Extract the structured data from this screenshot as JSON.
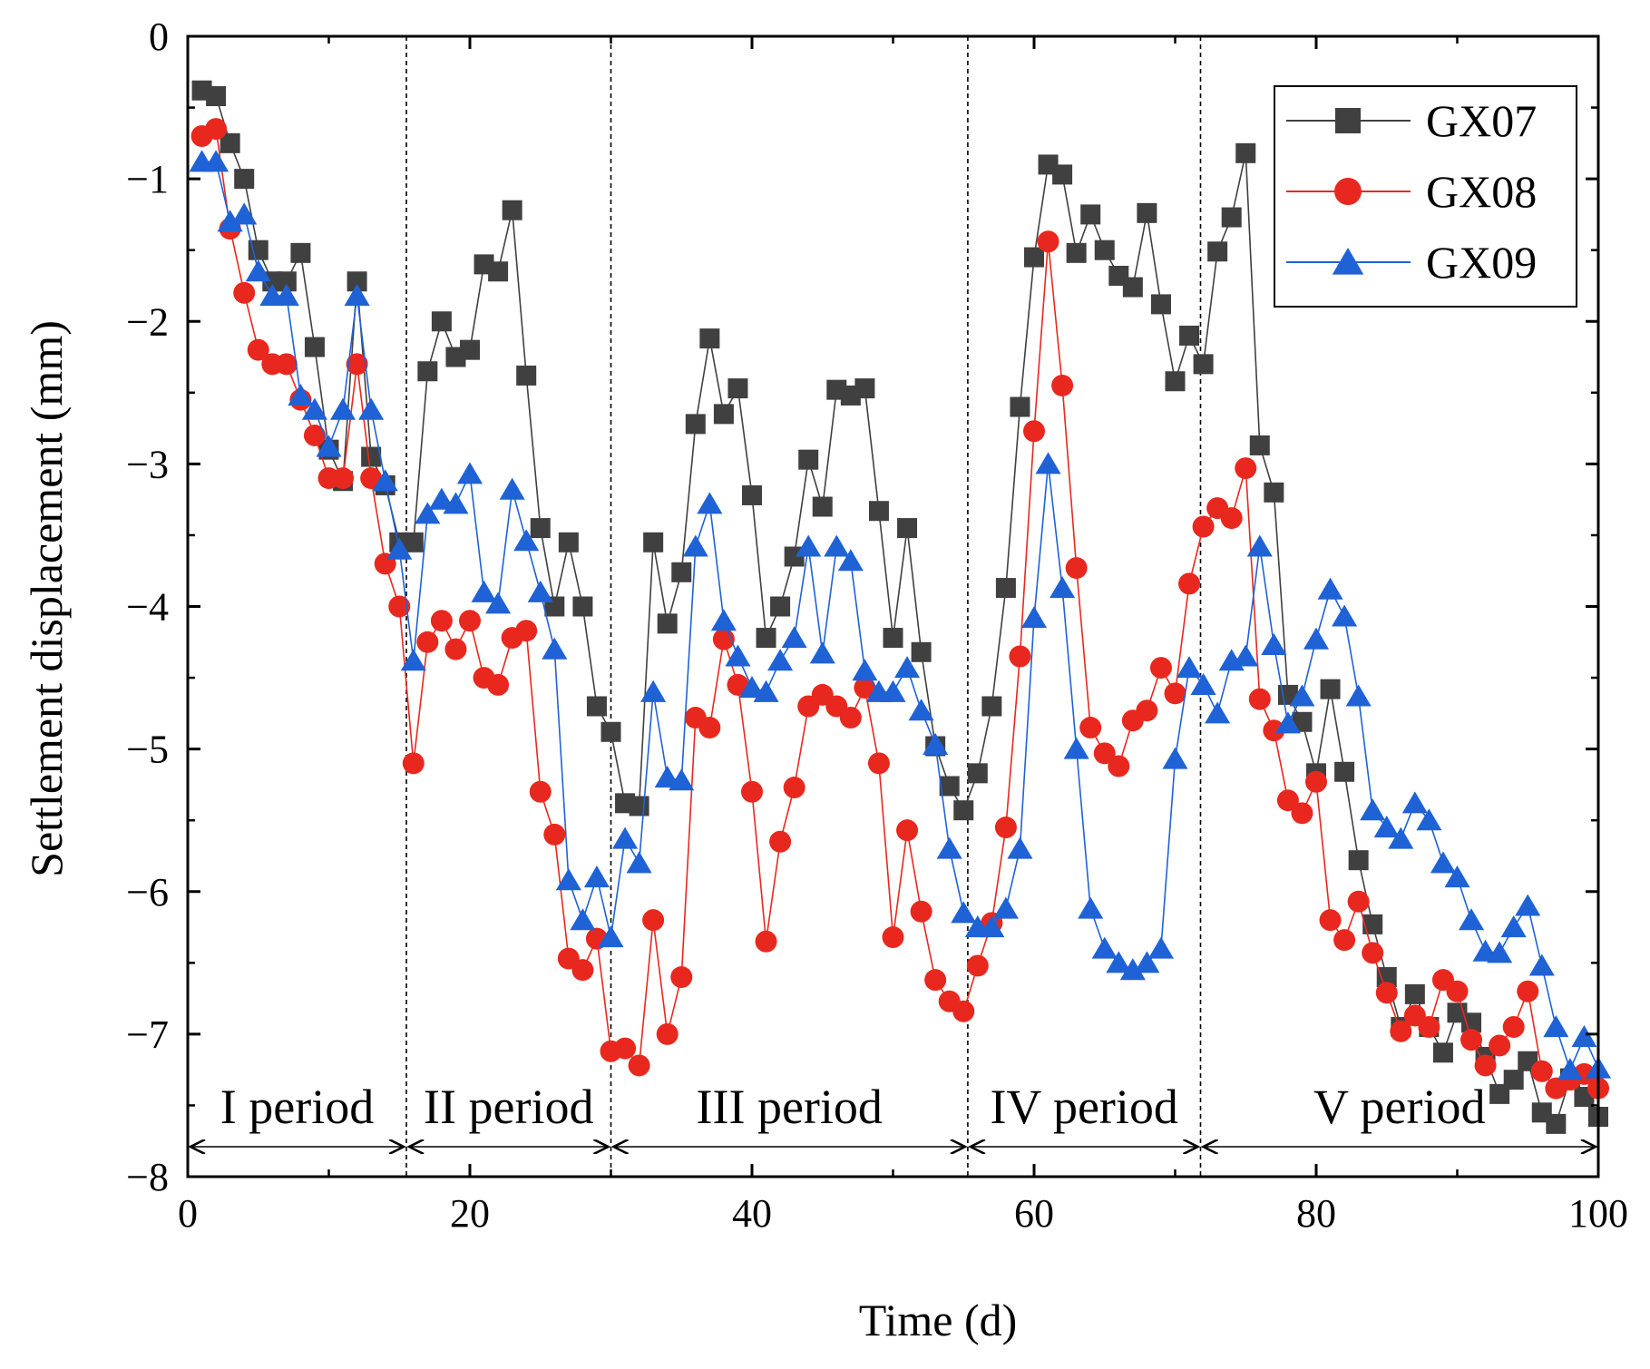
{
  "chart_data": {
    "type": "line",
    "title": "",
    "xlabel": "Time (d)",
    "ylabel": "Settlement displacement (mm)",
    "xlim": [
      0,
      100
    ],
    "ylim": [
      -8,
      0
    ],
    "xticks": [
      0,
      20,
      40,
      60,
      80,
      100
    ],
    "yticks": [
      0,
      -1,
      -2,
      -3,
      -4,
      -5,
      -6,
      -7,
      -8
    ],
    "grid": false,
    "legend_position": "top-right",
    "period_boundaries": [
      15.5,
      30,
      55.3,
      71.8
    ],
    "periods": [
      {
        "label": "I period",
        "start": 0,
        "end": 15.5
      },
      {
        "label": "II period",
        "start": 15.5,
        "end": 30
      },
      {
        "label": "III period",
        "start": 30,
        "end": 55.3
      },
      {
        "label": "IV period",
        "start": 55.3,
        "end": 71.8
      },
      {
        "label": "V period",
        "start": 71.8,
        "end": 100
      }
    ],
    "x": [
      1,
      2,
      3,
      4,
      5,
      6,
      7,
      8,
      9,
      10,
      11,
      12,
      13,
      14,
      15,
      16,
      17,
      18,
      19,
      20,
      21,
      22,
      23,
      24,
      25,
      26,
      27,
      28,
      29,
      30,
      31,
      32,
      33,
      34,
      35,
      36,
      37,
      38,
      39,
      40,
      41,
      42,
      43,
      44,
      45,
      46,
      47,
      48,
      49,
      50,
      51,
      52,
      53,
      54,
      55,
      56,
      57,
      58,
      59,
      60,
      61,
      62,
      63,
      64,
      65,
      66,
      67,
      68,
      69,
      70,
      71,
      72,
      73,
      74,
      75,
      76,
      77,
      78,
      79,
      80,
      81,
      82,
      83,
      84,
      85,
      86,
      87,
      88,
      89,
      90,
      91,
      92,
      93,
      94,
      95,
      96,
      97,
      98,
      99,
      100
    ],
    "series": [
      {
        "name": "GX07",
        "color": "#404040",
        "marker": "square",
        "values": [
          -0.38,
          -0.42,
          -0.75,
          -1.0,
          -1.5,
          -1.72,
          -1.72,
          -1.52,
          -2.18,
          -2.9,
          -3.12,
          -1.72,
          -2.95,
          -3.15,
          -3.55,
          -3.55,
          -2.35,
          -2.0,
          -2.25,
          -2.2,
          -1.6,
          -1.65,
          -1.22,
          -2.38,
          -3.45,
          -4.0,
          -3.55,
          -4.0,
          -4.7,
          -4.88,
          -5.38,
          -5.4,
          -3.55,
          -4.12,
          -3.76,
          -2.72,
          -2.12,
          -2.65,
          -2.47,
          -3.22,
          -4.22,
          -4.0,
          -3.65,
          -2.97,
          -3.3,
          -2.48,
          -2.52,
          -2.47,
          -3.33,
          -4.22,
          -3.45,
          -4.32,
          -4.98,
          -5.26,
          -5.43,
          -5.17,
          -4.7,
          -3.87,
          -2.6,
          -1.55,
          -0.9,
          -0.97,
          -1.52,
          -1.25,
          -1.5,
          -1.68,
          -1.76,
          -1.24,
          -1.88,
          -2.42,
          -2.1,
          -2.3,
          -1.51,
          -1.27,
          -0.82,
          -2.87,
          -3.2,
          -4.62,
          -4.81,
          -5.17,
          -4.58,
          -5.16,
          -5.78,
          -6.23,
          -6.6,
          -6.95,
          -6.72,
          -6.95,
          -7.13,
          -6.85,
          -6.92,
          -7.16,
          -7.42,
          -7.32,
          -7.19,
          -7.55,
          -7.63,
          -7.31,
          -7.44,
          -7.58
        ]
      },
      {
        "name": "GX08",
        "color": "#e8281e",
        "marker": "circle",
        "values": [
          -0.7,
          -0.65,
          -1.35,
          -1.8,
          -2.2,
          -2.3,
          -2.3,
          -2.55,
          -2.8,
          -3.1,
          -3.1,
          -2.3,
          -3.1,
          -3.7,
          -4.0,
          -5.1,
          -4.25,
          -4.1,
          -4.3,
          -4.1,
          -4.5,
          -4.55,
          -4.22,
          -4.17,
          -5.3,
          -5.6,
          -6.47,
          -6.55,
          -6.33,
          -7.12,
          -7.1,
          -7.22,
          -6.2,
          -7.0,
          -6.6,
          -4.78,
          -4.85,
          -4.23,
          -4.55,
          -5.3,
          -6.35,
          -5.65,
          -5.27,
          -4.7,
          -4.62,
          -4.7,
          -4.78,
          -4.57,
          -5.1,
          -6.32,
          -5.57,
          -6.14,
          -6.62,
          -6.77,
          -6.84,
          -6.52,
          -6.22,
          -5.55,
          -4.35,
          -2.77,
          -1.44,
          -2.45,
          -3.73,
          -4.85,
          -5.03,
          -5.12,
          -4.8,
          -4.73,
          -4.43,
          -4.61,
          -3.84,
          -3.44,
          -3.31,
          -3.38,
          -3.03,
          -4.65,
          -4.87,
          -5.36,
          -5.45,
          -5.23,
          -6.2,
          -6.34,
          -6.07,
          -6.43,
          -6.71,
          -6.98,
          -6.87,
          -6.95,
          -6.62,
          -6.7,
          -7.04,
          -7.22,
          -7.08,
          -6.95,
          -6.7,
          -7.26,
          -7.38,
          -7.32,
          -7.28,
          -7.38
        ]
      },
      {
        "name": "GX09",
        "color": "#1f62d6",
        "marker": "triangle",
        "values": [
          -0.88,
          -0.88,
          -1.3,
          -1.25,
          -1.65,
          -1.82,
          -1.82,
          -2.52,
          -2.62,
          -2.88,
          -2.62,
          -1.82,
          -2.62,
          -3.12,
          -3.6,
          -4.38,
          -3.35,
          -3.25,
          -3.28,
          -3.07,
          -3.9,
          -3.98,
          -3.18,
          -3.54,
          -3.9,
          -4.3,
          -5.92,
          -6.2,
          -5.9,
          -6.32,
          -5.63,
          -5.8,
          -4.6,
          -5.2,
          -5.22,
          -3.58,
          -3.28,
          -4.1,
          -4.35,
          -4.57,
          -4.6,
          -4.38,
          -4.22,
          -3.58,
          -4.33,
          -3.58,
          -3.68,
          -4.45,
          -4.6,
          -4.6,
          -4.43,
          -4.73,
          -4.97,
          -5.7,
          -6.15,
          -6.25,
          -6.25,
          -6.12,
          -5.7,
          -4.08,
          -3.0,
          -3.87,
          -5.0,
          -6.12,
          -6.4,
          -6.5,
          -6.55,
          -6.5,
          -6.4,
          -5.07,
          -4.43,
          -4.55,
          -4.75,
          -4.38,
          -4.35,
          -3.58,
          -4.27,
          -4.82,
          -4.63,
          -4.23,
          -3.88,
          -4.07,
          -4.63,
          -5.43,
          -5.55,
          -5.63,
          -5.38,
          -5.5,
          -5.8,
          -5.9,
          -6.2,
          -6.42,
          -6.43,
          -6.25,
          -6.1,
          -6.52,
          -6.95,
          -7.25,
          -7.02,
          -7.24
        ]
      }
    ]
  }
}
